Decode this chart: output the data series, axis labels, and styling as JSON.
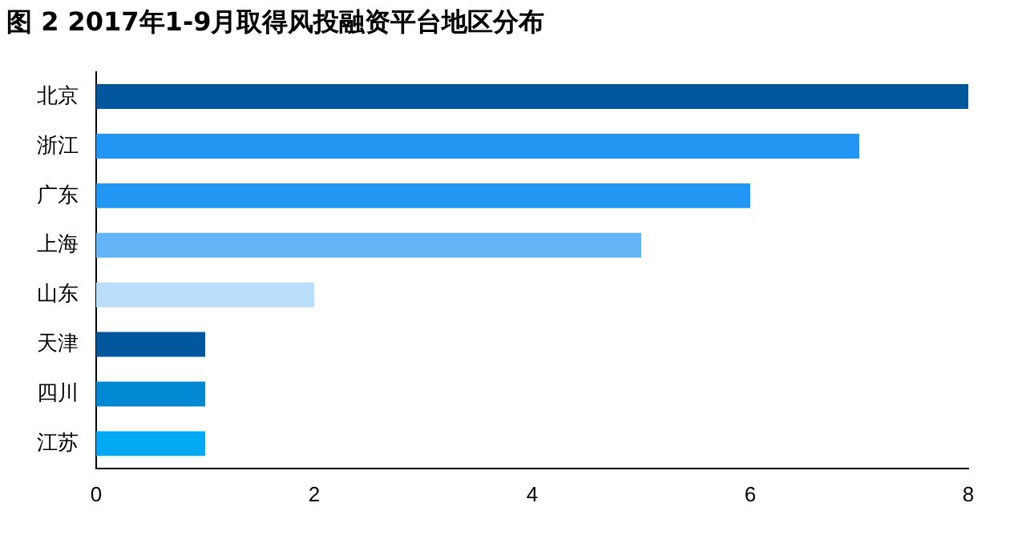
{
  "chart_data": {
    "type": "bar",
    "orientation": "horizontal",
    "title": "图 2 2017年1-9月取得风投融资平台地区分布",
    "categories": [
      "北京",
      "浙江",
      "广东",
      "上海",
      "山东",
      "天津",
      "四川",
      "江苏"
    ],
    "values": [
      8,
      7,
      6,
      5,
      2,
      1,
      1,
      1
    ],
    "colors": [
      "#00579c",
      "#2196f3",
      "#2196f3",
      "#64b5f6",
      "#bbdefb",
      "#00579c",
      "#0288d1",
      "#03a9f4"
    ],
    "xlim": [
      0,
      8
    ],
    "xticks": [
      0,
      2,
      4,
      6,
      8
    ],
    "grid": false,
    "legend": false
  }
}
